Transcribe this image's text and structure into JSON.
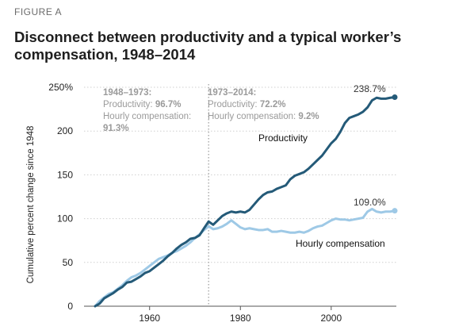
{
  "figure_label": "FIGURE A",
  "title": "Disconnect between productivity and a typical worker’s compensation, 1948–2014",
  "colors": {
    "productivity": "#245a78",
    "compensation": "#9ec9e6",
    "grid": "#cfcfcf",
    "divider": "#9a9a9a"
  },
  "annotations": {
    "left": {
      "period": "1948–1973:",
      "prod_label": "Productivity: ",
      "prod_value": "96.7%",
      "comp_label": "Hourly compensation:",
      "comp_value": "91.3%"
    },
    "right": {
      "period": "1973–2014:",
      "prod_label": "Productivity: ",
      "prod_value": "72.2%",
      "comp_label": "Hourly compensation: ",
      "comp_value": "9.2%"
    }
  },
  "chart_data": {
    "type": "line",
    "title": "Disconnect between productivity and a typical worker’s compensation, 1948–2014",
    "ylabel": "Cumulative percent change since 1948",
    "xlabel": "",
    "ylim": [
      0,
      250
    ],
    "xlim": [
      1948,
      2014
    ],
    "grid": true,
    "y_ticks": [
      "0",
      "50",
      "100",
      "150",
      "200",
      "250%"
    ],
    "y_tick_values": [
      0,
      50,
      100,
      150,
      200,
      250
    ],
    "x_ticks": [
      1960,
      1980,
      2000
    ],
    "x_tick_labels": [
      "1960",
      "1980",
      "2000"
    ],
    "divider_year": 1973,
    "x": [
      1948,
      1949,
      1950,
      1951,
      1952,
      1953,
      1954,
      1955,
      1956,
      1957,
      1958,
      1959,
      1960,
      1961,
      1962,
      1963,
      1964,
      1965,
      1966,
      1967,
      1968,
      1969,
      1970,
      1971,
      1972,
      1973,
      1974,
      1975,
      1976,
      1977,
      1978,
      1979,
      1980,
      1981,
      1982,
      1983,
      1984,
      1985,
      1986,
      1987,
      1988,
      1989,
      1990,
      1991,
      1992,
      1993,
      1994,
      1995,
      1996,
      1997,
      1998,
      1999,
      2000,
      2001,
      2002,
      2003,
      2004,
      2005,
      2006,
      2007,
      2008,
      2009,
      2010,
      2011,
      2012,
      2013,
      2014
    ],
    "series": [
      {
        "name": "Productivity",
        "values": [
          0,
          3,
          9,
          12,
          15,
          19,
          22,
          27,
          28,
          31,
          34,
          38,
          40,
          44,
          48,
          52,
          57,
          61,
          66,
          70,
          73,
          77,
          78,
          81,
          89,
          96.7,
          93,
          98,
          103,
          106,
          108,
          107,
          108,
          107,
          110,
          116,
          122,
          127,
          130,
          131,
          134,
          136,
          138,
          145,
          149,
          151,
          153,
          157,
          162,
          167,
          172,
          179,
          186,
          191,
          199,
          209,
          215,
          217,
          219,
          222,
          227,
          235,
          238,
          237,
          237,
          238,
          238.7
        ]
      },
      {
        "name": "Hourly compensation",
        "values": [
          0,
          6,
          10,
          14,
          16,
          20,
          24,
          29,
          33,
          35,
          38,
          42,
          46,
          50,
          54,
          56,
          58,
          61,
          63,
          66,
          69,
          73,
          78,
          82,
          87,
          91.3,
          88,
          89,
          91,
          94,
          98,
          94,
          90,
          88,
          89,
          88,
          87,
          87,
          88,
          85,
          85,
          86,
          85,
          84,
          84,
          85,
          84,
          86,
          89,
          91,
          92,
          95,
          98,
          100,
          99,
          99,
          98,
          99,
          100,
          101,
          108,
          111,
          108,
          107,
          108,
          108,
          109.0
        ]
      }
    ],
    "series_labels": {
      "productivity": "Productivity",
      "compensation": "Hourly compensation"
    },
    "end_labels": {
      "productivity": "238.7%",
      "compensation": "109.0%"
    }
  }
}
